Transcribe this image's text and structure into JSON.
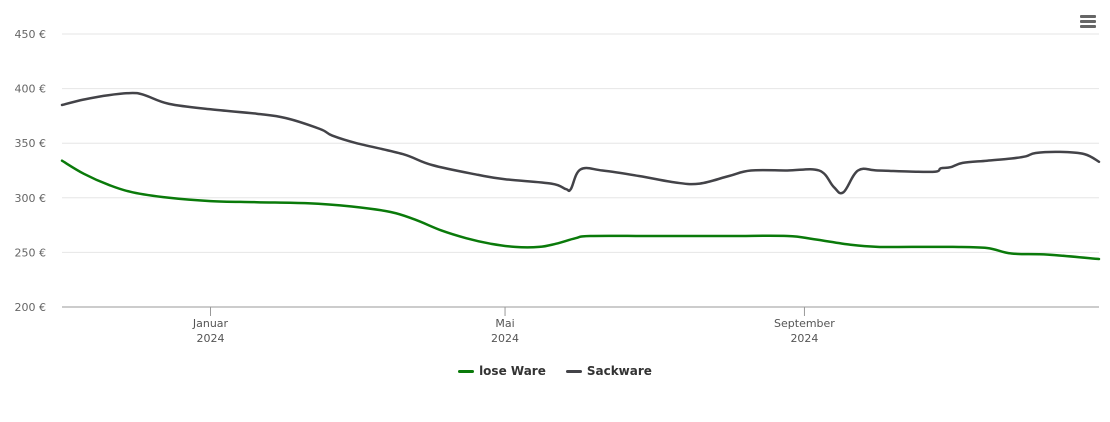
{
  "chart_data": {
    "type": "line",
    "title": "",
    "xlabel": "",
    "ylabel": "",
    "ylim": [
      200,
      450
    ],
    "yticks": [
      200,
      250,
      300,
      350,
      400,
      450
    ],
    "ytick_labels": [
      "200 €",
      "250 €",
      "300 €",
      "350 €",
      "400 €",
      "450 €"
    ],
    "xlim": [
      "2023-11-01",
      "2024-12-31"
    ],
    "xticks": [
      {
        "date": "2024-01-01",
        "label": "Januar",
        "sublabel": "2024"
      },
      {
        "date": "2024-05-01",
        "label": "Mai",
        "sublabel": "2024"
      },
      {
        "date": "2024-09-01",
        "label": "September",
        "sublabel": "2024"
      }
    ],
    "grid": true,
    "legend_position": "bottom-center",
    "series": [
      {
        "name": "lose Ware",
        "color": "#0a7a0a",
        "points": [
          [
            "2023-11-01",
            334
          ],
          [
            "2023-11-10",
            322
          ],
          [
            "2023-11-20",
            312
          ],
          [
            "2023-11-30",
            305
          ],
          [
            "2023-12-15",
            300
          ],
          [
            "2024-01-01",
            297
          ],
          [
            "2024-01-20",
            296
          ],
          [
            "2024-02-10",
            295
          ],
          [
            "2024-02-28",
            292
          ],
          [
            "2024-03-15",
            287
          ],
          [
            "2024-03-25",
            280
          ],
          [
            "2024-04-05",
            270
          ],
          [
            "2024-04-15",
            263
          ],
          [
            "2024-04-25",
            258
          ],
          [
            "2024-05-05",
            255
          ],
          [
            "2024-05-15",
            255
          ],
          [
            "2024-05-22",
            258
          ],
          [
            "2024-05-30",
            263
          ],
          [
            "2024-06-05",
            265
          ],
          [
            "2024-07-01",
            265
          ],
          [
            "2024-08-01",
            265
          ],
          [
            "2024-08-25",
            265
          ],
          [
            "2024-09-05",
            262
          ],
          [
            "2024-09-20",
            257
          ],
          [
            "2024-10-01",
            255
          ],
          [
            "2024-10-15",
            255
          ],
          [
            "2024-11-01",
            255
          ],
          [
            "2024-11-15",
            254
          ],
          [
            "2024-11-25",
            249
          ],
          [
            "2024-12-10",
            248
          ],
          [
            "2024-12-31",
            244
          ]
        ]
      },
      {
        "name": "Sackware",
        "color": "#434348",
        "points": [
          [
            "2023-11-01",
            385
          ],
          [
            "2023-11-10",
            390
          ],
          [
            "2023-11-20",
            394
          ],
          [
            "2023-11-30",
            396
          ],
          [
            "2023-12-05",
            394
          ],
          [
            "2023-12-15",
            386
          ],
          [
            "2024-01-01",
            381
          ],
          [
            "2024-01-20",
            377
          ],
          [
            "2024-02-01",
            373
          ],
          [
            "2024-02-15",
            363
          ],
          [
            "2024-02-20",
            357
          ],
          [
            "2024-03-01",
            350
          ],
          [
            "2024-03-20",
            340
          ],
          [
            "2024-04-01",
            330
          ],
          [
            "2024-04-20",
            321
          ],
          [
            "2024-05-01",
            317
          ],
          [
            "2024-05-20",
            313
          ],
          [
            "2024-05-26",
            308
          ],
          [
            "2024-05-28",
            308
          ],
          [
            "2024-06-01",
            326
          ],
          [
            "2024-06-10",
            325
          ],
          [
            "2024-06-25",
            320
          ],
          [
            "2024-07-10",
            314
          ],
          [
            "2024-07-20",
            313
          ],
          [
            "2024-08-01",
            320
          ],
          [
            "2024-08-10",
            325
          ],
          [
            "2024-08-25",
            325
          ],
          [
            "2024-09-07",
            325
          ],
          [
            "2024-09-13",
            310
          ],
          [
            "2024-09-17",
            305
          ],
          [
            "2024-09-23",
            325
          ],
          [
            "2024-10-01",
            325
          ],
          [
            "2024-10-15",
            324
          ],
          [
            "2024-10-25",
            324
          ],
          [
            "2024-10-27",
            327
          ],
          [
            "2024-10-31",
            328
          ],
          [
            "2024-11-05",
            332
          ],
          [
            "2024-11-15",
            334
          ],
          [
            "2024-11-25",
            336
          ],
          [
            "2024-12-01",
            338
          ],
          [
            "2024-12-05",
            341
          ],
          [
            "2024-12-15",
            342
          ],
          [
            "2024-12-25",
            340
          ],
          [
            "2024-12-31",
            333
          ]
        ]
      }
    ]
  },
  "menu": {
    "icon": "hamburger-menu-icon"
  }
}
